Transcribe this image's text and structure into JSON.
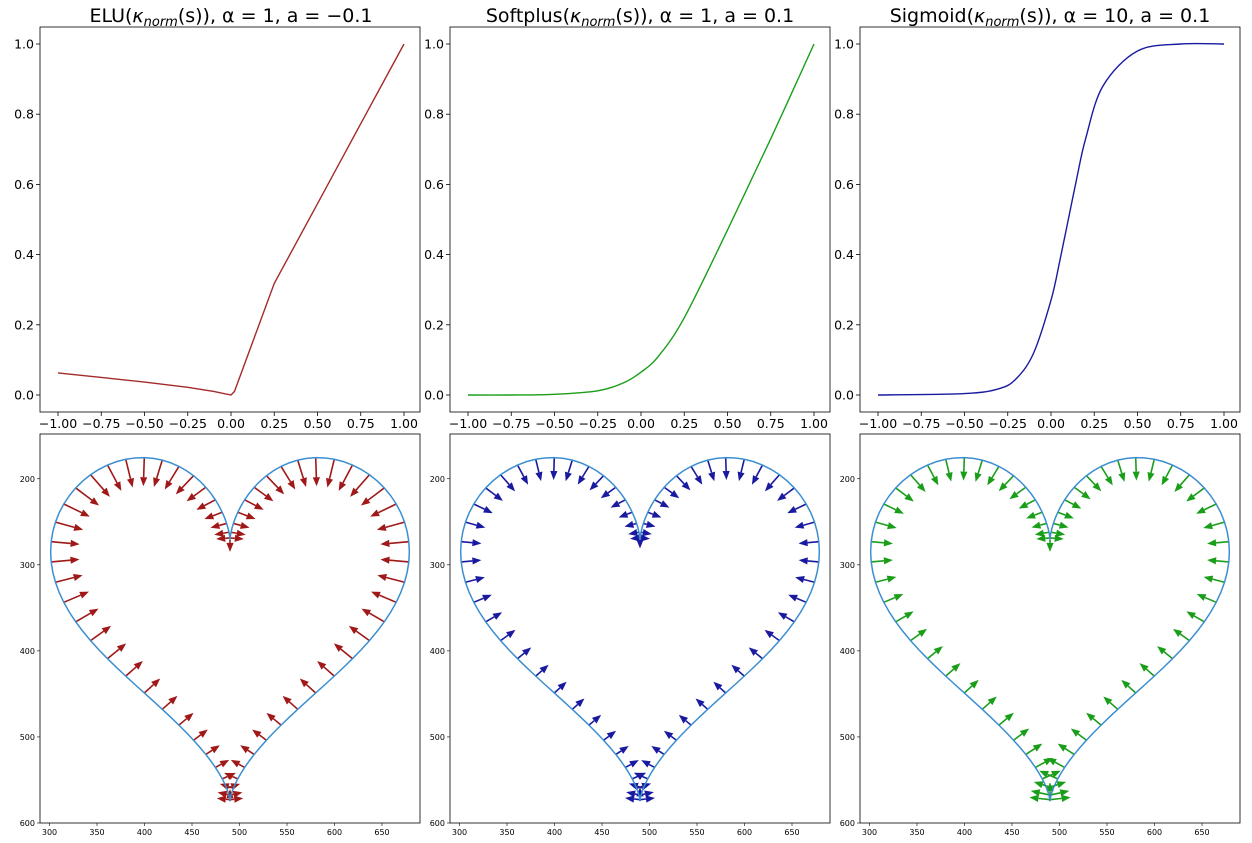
{
  "titles": [
    "ELU(κ_norm(s)), α = 1, a = −0.1",
    "Softplus(κ_norm(s)), α = 1, a = 0.1",
    "Sigmoid(κ_norm(s)), α = 10, a = 0.1"
  ],
  "title_parts": [
    {
      "pre": "ELU(",
      "kappa": "κ",
      "sub": "norm",
      "post": "(s)), ",
      "params": "α = 1, a = −0.1"
    },
    {
      "pre": "Softplus(",
      "kappa": "κ",
      "sub": "norm",
      "post": "(s)), ",
      "params": "α = 1, a = 0.1"
    },
    {
      "pre": "Sigmoid(",
      "kappa": "κ",
      "sub": "norm",
      "post": "(s)), ",
      "params": "α = 10, a = 0.1"
    }
  ],
  "chart_data": [
    {
      "type": "line",
      "panel": "top-left",
      "title": "ELU(κ_norm(s)), α = 1, a = −0.1",
      "function": "ELU",
      "alpha": 1,
      "a": -0.1,
      "color": "#a52a2a",
      "xlim": [
        -1.0,
        1.0
      ],
      "ylim": [
        0.0,
        1.0
      ],
      "xticks": [
        "−1.00",
        "−0.75",
        "−0.50",
        "−0.25",
        "0.00",
        "0.25",
        "0.50",
        "0.75",
        "1.00"
      ],
      "yticks": [
        "0.0",
        "0.2",
        "0.4",
        "0.6",
        "0.8",
        "1.0"
      ],
      "series": [
        {
          "x": [
            -1.0,
            -0.75,
            -0.5,
            -0.25,
            -0.1,
            0.0,
            0.02,
            0.25,
            0.5,
            0.75,
            1.0
          ],
          "y": [
            0.063,
            0.05,
            0.037,
            0.022,
            0.01,
            0.0,
            0.01,
            0.318,
            0.545,
            0.773,
            1.0
          ]
        }
      ]
    },
    {
      "type": "line",
      "panel": "top-middle",
      "title": "Softplus(κ_norm(s)), α = 1, a = 0.1",
      "function": "Softplus",
      "alpha": 1,
      "a": 0.1,
      "color": "#1a9e1a",
      "xlim": [
        -1.0,
        1.0
      ],
      "ylim": [
        0.0,
        1.0
      ],
      "xticks": [
        "−1.00",
        "−0.75",
        "−0.50",
        "−0.25",
        "0.00",
        "0.25",
        "0.50",
        "0.75",
        "1.00"
      ],
      "yticks": [
        "0.0",
        "0.2",
        "0.4",
        "0.6",
        "0.8",
        "1.0"
      ],
      "series": [
        {
          "x": [
            -1.0,
            -0.75,
            -0.5,
            -0.25,
            -0.1,
            0.0,
            0.1,
            0.25,
            0.5,
            0.75,
            1.0
          ],
          "y": [
            0.0,
            0.0,
            0.002,
            0.012,
            0.035,
            0.065,
            0.11,
            0.22,
            0.47,
            0.73,
            1.0
          ]
        }
      ]
    },
    {
      "type": "line",
      "panel": "top-right",
      "title": "Sigmoid(κ_norm(s)), α = 10, a = 0.1",
      "function": "Sigmoid",
      "alpha": 10,
      "a": 0.1,
      "color": "#1a1aa0",
      "xlim": [
        -1.0,
        1.0
      ],
      "ylim": [
        0.0,
        1.0
      ],
      "xticks": [
        "−1.00",
        "−0.75",
        "−0.50",
        "−0.25",
        "0.00",
        "0.25",
        "0.50",
        "0.75",
        "1.00"
      ],
      "yticks": [
        "0.0",
        "0.2",
        "0.4",
        "0.6",
        "0.8",
        "1.0"
      ],
      "series": [
        {
          "x": [
            -1.0,
            -0.5,
            -0.3,
            -0.2,
            -0.1,
            0.0,
            0.05,
            0.1,
            0.15,
            0.2,
            0.3,
            0.5,
            0.75,
            1.0
          ],
          "y": [
            0.0,
            0.004,
            0.018,
            0.047,
            0.12,
            0.27,
            0.38,
            0.5,
            0.62,
            0.73,
            0.88,
            0.98,
            1.0,
            1.0
          ]
        }
      ]
    },
    {
      "type": "quiver",
      "panel": "bottom-left",
      "arrow_color": "#a01818",
      "curve_color": "#3b8ed0",
      "xlim": [
        290,
        690
      ],
      "ylim": [
        600,
        148
      ],
      "xticks": [
        "300",
        "350",
        "400",
        "450",
        "500",
        "550",
        "600",
        "650"
      ],
      "yticks": [
        "200",
        "300",
        "400",
        "500",
        "600"
      ]
    },
    {
      "type": "quiver",
      "panel": "bottom-middle",
      "arrow_color": "#1a1aa0",
      "curve_color": "#3b8ed0",
      "xlim": [
        290,
        690
      ],
      "ylim": [
        600,
        148
      ],
      "xticks": [
        "300",
        "350",
        "400",
        "450",
        "500",
        "550",
        "600",
        "650"
      ],
      "yticks": [
        "200",
        "300",
        "400",
        "500",
        "600"
      ]
    },
    {
      "type": "quiver",
      "panel": "bottom-right",
      "arrow_color": "#1a9e1a",
      "curve_color": "#3b8ed0",
      "xlim": [
        290,
        690
      ],
      "ylim": [
        600,
        148
      ],
      "xticks": [
        "300",
        "350",
        "400",
        "450",
        "500",
        "550",
        "600",
        "650"
      ],
      "yticks": [
        "200",
        "300",
        "400",
        "500",
        "600"
      ]
    }
  ]
}
